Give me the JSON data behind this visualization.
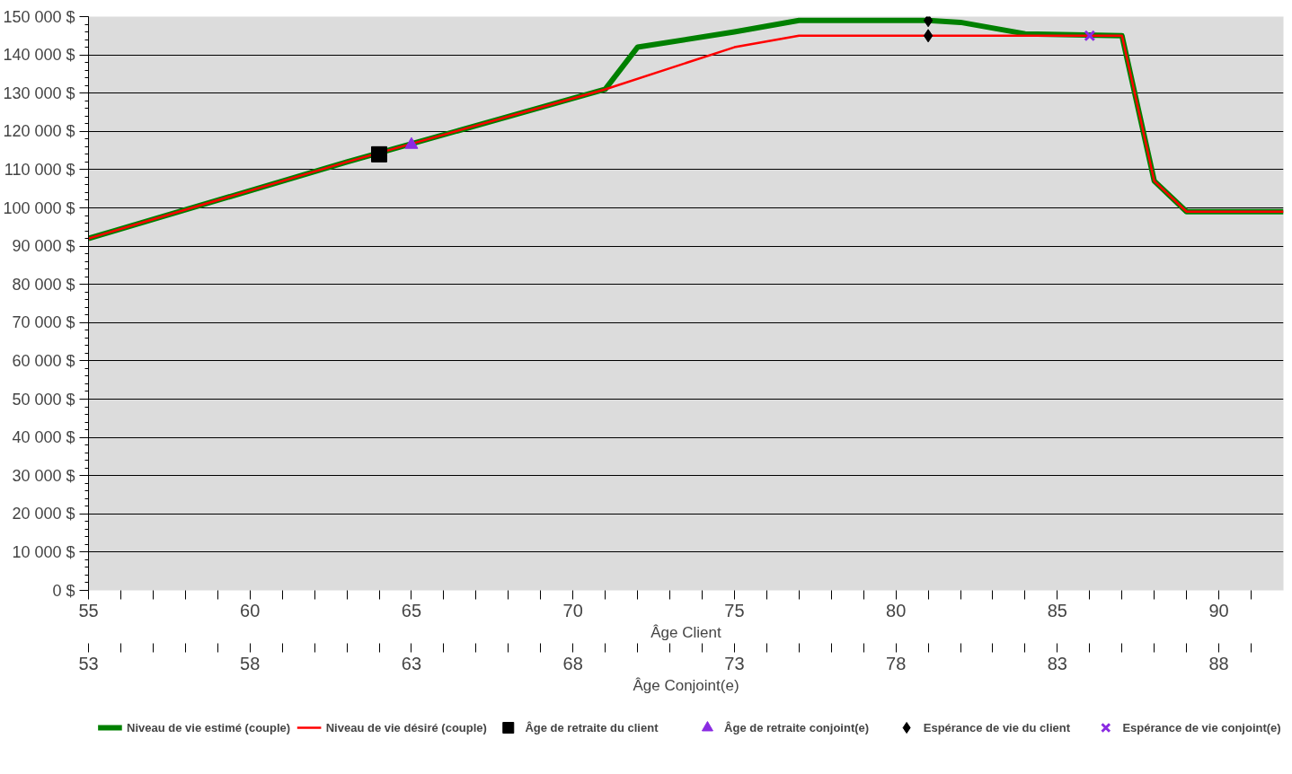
{
  "chart_data": {
    "type": "line",
    "xlabel": "Âge Client",
    "x2label": "Âge Conjoint(e)",
    "xlim": [
      55,
      92
    ],
    "x2lim": [
      53,
      90
    ],
    "xticks": [
      55,
      {
        "value": 56,
        "label": null
      },
      {
        "value": 57,
        "label": null
      },
      {
        "value": 58,
        "label": null
      },
      {
        "value": 59,
        "label": null
      },
      60,
      {
        "value": 61,
        "label": null
      },
      {
        "value": 62,
        "label": null
      },
      {
        "value": 63,
        "label": null
      },
      {
        "value": 64,
        "label": null
      },
      65,
      {
        "value": 66,
        "label": null
      },
      {
        "value": 67,
        "label": null
      },
      {
        "value": 68,
        "label": null
      },
      {
        "value": 69,
        "label": null
      },
      70,
      {
        "value": 71,
        "label": null
      },
      {
        "value": 72,
        "label": null
      },
      {
        "value": 73,
        "label": null
      },
      {
        "value": 74,
        "label": null
      },
      75,
      {
        "value": 76,
        "label": null
      },
      {
        "value": 77,
        "label": null
      },
      {
        "value": 78,
        "label": null
      },
      {
        "value": 79,
        "label": null
      },
      80,
      {
        "value": 81,
        "label": null
      },
      {
        "value": 82,
        "label": null
      },
      {
        "value": 83,
        "label": null
      },
      {
        "value": 84,
        "label": null
      },
      85,
      {
        "value": 86,
        "label": null
      },
      {
        "value": 87,
        "label": null
      },
      {
        "value": 88,
        "label": null
      },
      {
        "value": 89,
        "label": null
      },
      90,
      {
        "value": 91,
        "label": null
      }
    ],
    "x2ticks": [
      53,
      {
        "value": 54,
        "label": null
      },
      {
        "value": 55,
        "label": null
      },
      {
        "value": 56,
        "label": null
      },
      {
        "value": 57,
        "label": null
      },
      58,
      {
        "value": 59,
        "label": null
      },
      {
        "value": 60,
        "label": null
      },
      {
        "value": 61,
        "label": null
      },
      {
        "value": 62,
        "label": null
      },
      63,
      {
        "value": 64,
        "label": null
      },
      {
        "value": 65,
        "label": null
      },
      {
        "value": 66,
        "label": null
      },
      {
        "value": 67,
        "label": null
      },
      68,
      {
        "value": 69,
        "label": null
      },
      {
        "value": 70,
        "label": null
      },
      {
        "value": 71,
        "label": null
      },
      {
        "value": 72,
        "label": null
      },
      73,
      {
        "value": 74,
        "label": null
      },
      {
        "value": 75,
        "label": null
      },
      {
        "value": 76,
        "label": null
      },
      {
        "value": 77,
        "label": null
      },
      78,
      {
        "value": 79,
        "label": null
      },
      {
        "value": 80,
        "label": null
      },
      {
        "value": 81,
        "label": null
      },
      {
        "value": 82,
        "label": null
      },
      83,
      {
        "value": 84,
        "label": null
      },
      {
        "value": 85,
        "label": null
      },
      {
        "value": 86,
        "label": null
      },
      {
        "value": 87,
        "label": null
      },
      88,
      {
        "value": 89,
        "label": null
      }
    ],
    "ylim": [
      0,
      150000
    ],
    "yticks": [
      {
        "value": 0,
        "label": "0 $"
      },
      {
        "value": 10000,
        "label": "10 000 $"
      },
      {
        "value": 20000,
        "label": "20 000 $"
      },
      {
        "value": 30000,
        "label": "30 000 $"
      },
      {
        "value": 40000,
        "label": "40 000 $"
      },
      {
        "value": 50000,
        "label": "50 000 $"
      },
      {
        "value": 60000,
        "label": "60 000 $"
      },
      {
        "value": 70000,
        "label": "70 000 $"
      },
      {
        "value": 80000,
        "label": "80 000 $"
      },
      {
        "value": 90000,
        "label": "90 000 $"
      },
      {
        "value": 100000,
        "label": "100 000 $"
      },
      {
        "value": 110000,
        "label": "110 000 $"
      },
      {
        "value": 120000,
        "label": "120 000 $"
      },
      {
        "value": 130000,
        "label": "130 000 $"
      },
      {
        "value": 140000,
        "label": "140 000 $"
      },
      {
        "value": 150000,
        "label": "150 000 $"
      }
    ],
    "grid": "y",
    "legend": "bottom",
    "series": [
      {
        "name": "Niveau de vie estimé (couple)",
        "color": "#008000",
        "x": [
          55,
          63,
          71,
          72,
          75,
          77,
          81,
          82,
          84,
          87,
          88,
          89,
          92
        ],
        "values": [
          92000,
          112000,
          131000,
          142000,
          146000,
          149000,
          149000,
          148500,
          145500,
          145000,
          107000,
          99000,
          99000
        ]
      },
      {
        "name": "Niveau de vie désiré (couple)",
        "color": "#ff0000",
        "x": [
          55,
          63,
          71,
          75,
          77,
          84,
          87,
          88,
          89,
          92
        ],
        "values": [
          92000,
          112000,
          131000,
          142000,
          145000,
          145000,
          145000,
          107000,
          99000,
          99000
        ]
      },
      {
        "name": "Âge de retraite du client",
        "type": "scatter",
        "marker": "square",
        "color": "#000000",
        "x": [
          64
        ],
        "values": [
          114000
        ]
      },
      {
        "name": "Âge de retraite conjoint(e)",
        "type": "scatter",
        "marker": "triangle",
        "color": "#8a2be2",
        "x": [
          65
        ],
        "values": [
          116500
        ]
      },
      {
        "name": "Espérance de vie du client",
        "type": "scatter",
        "marker": "diamond",
        "color": "#000000",
        "x": [
          81,
          81
        ],
        "values": [
          149000,
          145000
        ]
      },
      {
        "name": "Espérance de vie conjoint(e)",
        "type": "scatter",
        "marker": "cross",
        "color": "#8a2be2",
        "x": [
          86
        ],
        "values": [
          145000
        ]
      }
    ]
  }
}
